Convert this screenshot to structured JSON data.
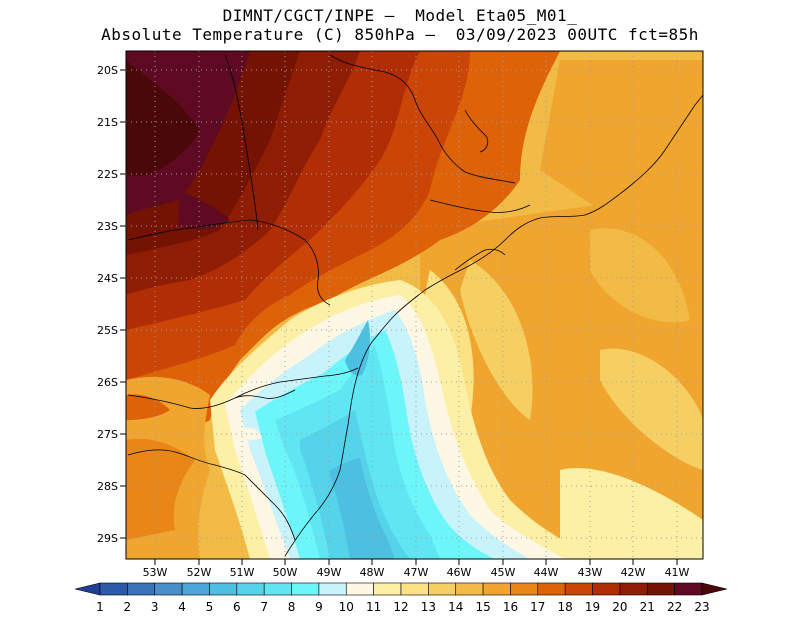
{
  "title_line1": "DIMNT/CGCT/INPE –  Model Eta05_M01_",
  "title_line2": "Absolute Temperature (C) 850hPa –  03/09/2023 00UTC fct=85h",
  "lat_labels": [
    "20S",
    "21S",
    "22S",
    "23S",
    "24S",
    "25S",
    "26S",
    "27S",
    "28S",
    "29S"
  ],
  "lon_labels": [
    "53W",
    "52W",
    "51W",
    "50W",
    "49W",
    "48W",
    "47W",
    "46W",
    "45W",
    "44W",
    "43W",
    "42W",
    "41W"
  ],
  "colorbar": {
    "labels": [
      "1",
      "2",
      "3",
      "4",
      "5",
      "6",
      "7",
      "8",
      "9",
      "10",
      "11",
      "12",
      "13",
      "14",
      "15",
      "16",
      "17",
      "18",
      "19",
      "20",
      "21",
      "22",
      "23"
    ],
    "colors": [
      "#1f3f95",
      "#2a5aa8",
      "#3a74b8",
      "#4a8fc8",
      "#4aa6d6",
      "#4dbfe0",
      "#55d3ea",
      "#5fe6f2",
      "#6df6fa",
      "#c9f3fb",
      "#fdf7e4",
      "#fcefa6",
      "#fae285",
      "#f6cf63",
      "#f2bb45",
      "#efa52e",
      "#e88618",
      "#dd6208",
      "#cb4507",
      "#b02d05",
      "#8f1d04",
      "#741203",
      "#5e0a22",
      "#4a0808"
    ]
  }
}
